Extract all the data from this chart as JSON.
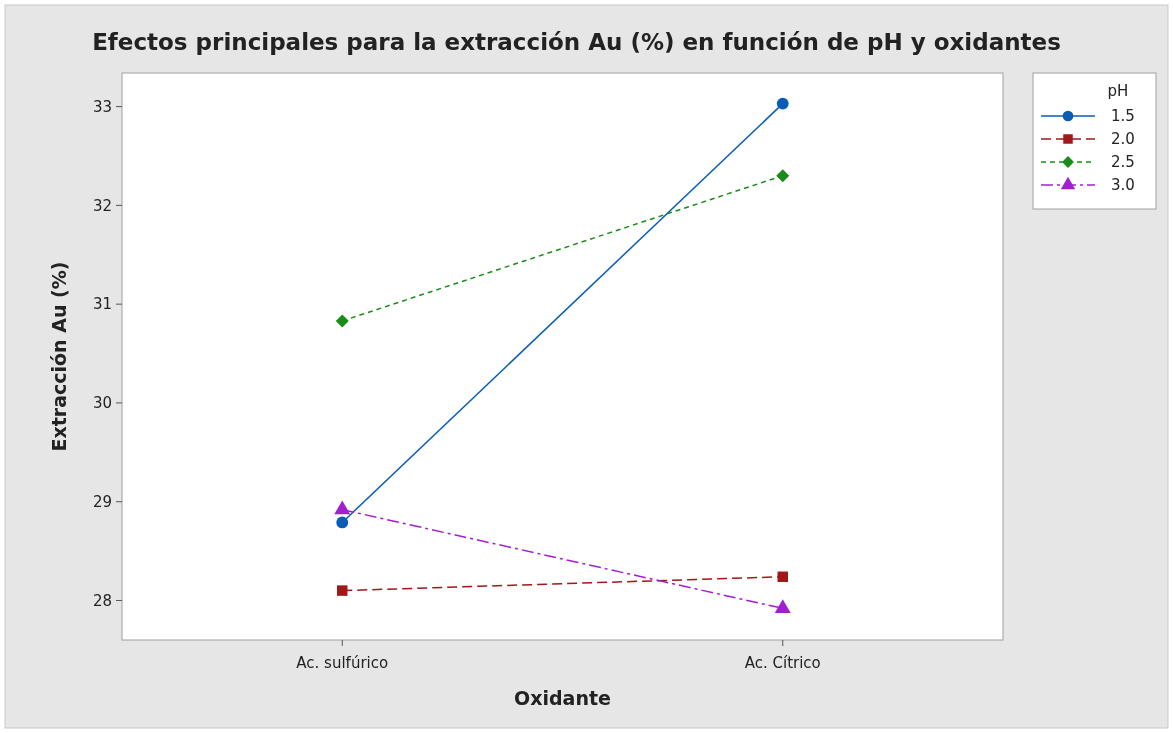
{
  "chart_data": {
    "type": "line",
    "title": "Efectos principales para la extracción Au (%) en función de pH y oxidantes",
    "xlabel": "Oxidante",
    "ylabel": "Extracción Au (%)",
    "legend_title": "pH",
    "legend": "right",
    "grid": false,
    "categories": [
      "Ac. sulfúrico",
      "Ac. Cítrico"
    ],
    "ylim": [
      27.6,
      33.34
    ],
    "yticks": [
      28,
      29,
      30,
      31,
      32,
      33
    ],
    "series": [
      {
        "name": "1.5",
        "color": "#0a5cb4",
        "values": [
          28.79,
          33.03
        ],
        "marker": "circle",
        "line_style": "solid"
      },
      {
        "name": "2.0",
        "color": "#a01818",
        "values": [
          28.1,
          28.24
        ],
        "marker": "square",
        "line_style": "dashed"
      },
      {
        "name": "2.5",
        "color": "#1a8c1a",
        "values": [
          30.83,
          32.3
        ],
        "marker": "diamond",
        "line_style": "dotted"
      },
      {
        "name": "3.0",
        "color": "#a020d0",
        "values": [
          28.92,
          27.92
        ],
        "marker": "triangle",
        "line_style": "dashdot"
      }
    ]
  }
}
